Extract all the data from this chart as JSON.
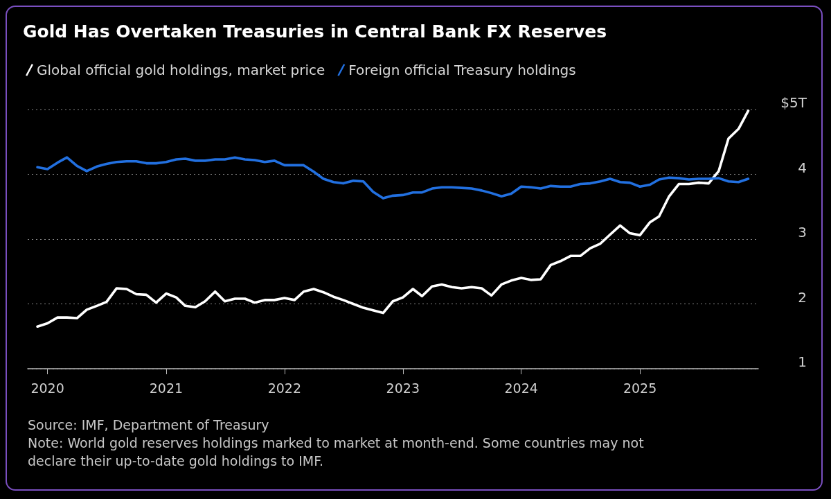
{
  "chart_data": {
    "type": "line",
    "title": "Gold Has Overtaken Treasuries in Central Bank FX Reserves",
    "x": [
      "2019-12",
      "2020-01",
      "2020-02",
      "2020-03",
      "2020-04",
      "2020-05",
      "2020-06",
      "2020-07",
      "2020-08",
      "2020-09",
      "2020-10",
      "2020-11",
      "2020-12",
      "2021-01",
      "2021-02",
      "2021-03",
      "2021-04",
      "2021-05",
      "2021-06",
      "2021-07",
      "2021-08",
      "2021-09",
      "2021-10",
      "2021-11",
      "2021-12",
      "2022-01",
      "2022-02",
      "2022-03",
      "2022-04",
      "2022-05",
      "2022-06",
      "2022-07",
      "2022-08",
      "2022-09",
      "2022-10",
      "2022-11",
      "2022-12",
      "2023-01",
      "2023-02",
      "2023-03",
      "2023-04",
      "2023-05",
      "2023-06",
      "2023-07",
      "2023-08",
      "2023-09",
      "2023-10",
      "2023-11",
      "2023-12",
      "2024-01",
      "2024-02",
      "2024-03",
      "2024-04",
      "2024-05",
      "2024-06",
      "2024-07",
      "2024-08",
      "2024-09",
      "2024-10",
      "2024-11",
      "2024-12",
      "2025-01",
      "2025-02",
      "2025-03",
      "2025-04",
      "2025-05",
      "2025-06",
      "2025-07",
      "2025-08",
      "2025-09",
      "2025-10",
      "2025-11",
      "2025-12"
    ],
    "series": [
      {
        "name": "Global official gold holdings, market price",
        "color": "#ffffff",
        "values": [
          1.65,
          1.7,
          1.79,
          1.79,
          1.78,
          1.91,
          1.97,
          2.03,
          2.24,
          2.23,
          2.15,
          2.14,
          2.02,
          2.16,
          2.1,
          1.97,
          1.95,
          2.04,
          2.19,
          2.04,
          2.08,
          2.08,
          2.02,
          2.06,
          2.06,
          2.09,
          2.06,
          2.19,
          2.23,
          2.18,
          2.11,
          2.06,
          2.0,
          1.94,
          1.9,
          1.86,
          2.04,
          2.1,
          2.23,
          2.12,
          2.27,
          2.3,
          2.26,
          2.24,
          2.26,
          2.24,
          2.13,
          2.3,
          2.36,
          2.4,
          2.37,
          2.38,
          2.6,
          2.66,
          2.74,
          2.74,
          2.86,
          2.93,
          3.07,
          3.21,
          3.09,
          3.06,
          3.26,
          3.35,
          3.66,
          3.85,
          3.85,
          3.87,
          3.86,
          4.05,
          4.55,
          4.7,
          4.98
        ]
      },
      {
        "name": "Foreign official Treasury holdings",
        "color": "#2270e0",
        "values": [
          4.11,
          4.08,
          4.18,
          4.26,
          4.13,
          4.05,
          4.12,
          4.16,
          4.19,
          4.2,
          4.2,
          4.17,
          4.17,
          4.19,
          4.23,
          4.24,
          4.21,
          4.21,
          4.23,
          4.23,
          4.26,
          4.23,
          4.22,
          4.19,
          4.21,
          4.14,
          4.14,
          4.14,
          4.04,
          3.93,
          3.88,
          3.86,
          3.9,
          3.89,
          3.73,
          3.63,
          3.67,
          3.68,
          3.72,
          3.72,
          3.78,
          3.8,
          3.8,
          3.79,
          3.78,
          3.75,
          3.71,
          3.66,
          3.7,
          3.81,
          3.8,
          3.78,
          3.82,
          3.81,
          3.81,
          3.85,
          3.86,
          3.89,
          3.93,
          3.88,
          3.87,
          3.81,
          3.84,
          3.92,
          3.95,
          3.94,
          3.92,
          3.93,
          3.93,
          3.94,
          3.89,
          3.88,
          3.93
        ]
      }
    ],
    "xlim": [
      "2019-11",
      "2026-01"
    ],
    "xticks": [
      "2020",
      "2021",
      "2022",
      "2023",
      "2024",
      "2025"
    ],
    "ylim": [
      1,
      5
    ],
    "yticks": [
      1,
      2,
      3,
      4,
      {
        "value": 5,
        "label": "$5T"
      }
    ],
    "grid": "y",
    "legend": "top left",
    "marker": "none",
    "line_style": "solid",
    "annotations": [
      "Source: IMF, Department of Treasury",
      "Note: World gold reserves holdings marked to market at month-end. Some countries may not declare their up-to-date gold holdings to IMF."
    ]
  }
}
